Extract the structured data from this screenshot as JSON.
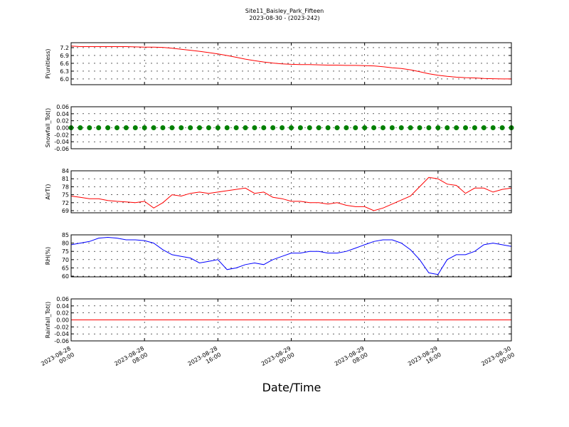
{
  "chart_data": [
    {
      "type": "line",
      "title": "Site11_Baisley_Park_Fifteen",
      "subtitle": "2023-08-30 - (2023-242)",
      "ylabel": "P(unitless)",
      "color": "#ff0000",
      "grid": true,
      "x": [
        "2023-08-28 00:00",
        "2023-08-28 01:00",
        "2023-08-28 02:00",
        "2023-08-28 03:00",
        "2023-08-28 04:00",
        "2023-08-28 05:00",
        "2023-08-28 06:00",
        "2023-08-28 07:00",
        "2023-08-28 08:00",
        "2023-08-28 09:00",
        "2023-08-28 10:00",
        "2023-08-28 11:00",
        "2023-08-28 12:00",
        "2023-08-28 13:00",
        "2023-08-28 14:00",
        "2023-08-28 15:00",
        "2023-08-28 16:00",
        "2023-08-28 17:00",
        "2023-08-28 18:00",
        "2023-08-28 19:00",
        "2023-08-28 20:00",
        "2023-08-28 21:00",
        "2023-08-28 22:00",
        "2023-08-28 23:00",
        "2023-08-29 00:00",
        "2023-08-29 01:00",
        "2023-08-29 02:00",
        "2023-08-29 03:00",
        "2023-08-29 04:00",
        "2023-08-29 05:00",
        "2023-08-29 06:00",
        "2023-08-29 07:00",
        "2023-08-29 08:00",
        "2023-08-29 09:00",
        "2023-08-29 10:00",
        "2023-08-29 11:00",
        "2023-08-29 12:00",
        "2023-08-29 13:00",
        "2023-08-29 14:00",
        "2023-08-29 15:00",
        "2023-08-29 16:00",
        "2023-08-29 17:00",
        "2023-08-29 18:00",
        "2023-08-29 19:00",
        "2023-08-29 20:00",
        "2023-08-29 21:00",
        "2023-08-29 22:00",
        "2023-08-29 23:00",
        "2023-08-30 00:00"
      ],
      "values": [
        7.26,
        7.24,
        7.24,
        7.24,
        7.24,
        7.24,
        7.24,
        7.23,
        7.22,
        7.22,
        7.21,
        7.18,
        7.14,
        7.1,
        7.06,
        7.01,
        6.96,
        6.9,
        6.83,
        6.76,
        6.7,
        6.65,
        6.61,
        6.58,
        6.56,
        6.55,
        6.55,
        6.54,
        6.53,
        6.53,
        6.52,
        6.52,
        6.51,
        6.5,
        6.47,
        6.43,
        6.4,
        6.35,
        6.28,
        6.2,
        6.14,
        6.1,
        6.07,
        6.05,
        6.04,
        6.02,
        6.01,
        6.0,
        6.0
      ],
      "ylim": [
        5.78,
        7.39
      ],
      "yticks": [
        {
          "value": 6,
          "label": "6.0"
        },
        6.3,
        6.6,
        6.9,
        7.2
      ]
    },
    {
      "type": "scatter",
      "ylabel": "Snowfall_Tot()",
      "color": "#008000",
      "grid": true,
      "x": [
        "2023-08-28 00:00",
        "2023-08-28 01:00",
        "2023-08-28 02:00",
        "2023-08-28 03:00",
        "2023-08-28 04:00",
        "2023-08-28 05:00",
        "2023-08-28 06:00",
        "2023-08-28 07:00",
        "2023-08-28 08:00",
        "2023-08-28 09:00",
        "2023-08-28 10:00",
        "2023-08-28 11:00",
        "2023-08-28 12:00",
        "2023-08-28 13:00",
        "2023-08-28 14:00",
        "2023-08-28 15:00",
        "2023-08-28 16:00",
        "2023-08-28 17:00",
        "2023-08-28 18:00",
        "2023-08-28 19:00",
        "2023-08-28 20:00",
        "2023-08-28 21:00",
        "2023-08-28 22:00",
        "2023-08-28 23:00",
        "2023-08-29 00:00",
        "2023-08-29 01:00",
        "2023-08-29 02:00",
        "2023-08-29 03:00",
        "2023-08-29 04:00",
        "2023-08-29 05:00",
        "2023-08-29 06:00",
        "2023-08-29 07:00",
        "2023-08-29 08:00",
        "2023-08-29 09:00",
        "2023-08-29 10:00",
        "2023-08-29 11:00",
        "2023-08-29 12:00",
        "2023-08-29 13:00",
        "2023-08-29 14:00",
        "2023-08-29 15:00",
        "2023-08-29 16:00",
        "2023-08-29 17:00",
        "2023-08-29 18:00",
        "2023-08-29 19:00",
        "2023-08-29 20:00",
        "2023-08-29 21:00",
        "2023-08-29 22:00",
        "2023-08-29 23:00",
        "2023-08-30 00:00"
      ],
      "values": [
        0,
        0,
        0,
        0,
        0,
        0,
        0,
        0,
        0,
        0,
        0,
        0,
        0,
        0,
        0,
        0,
        0,
        0,
        0,
        0,
        0,
        0,
        0,
        0,
        0,
        0,
        0,
        0,
        0,
        0,
        0,
        0,
        0,
        0,
        0,
        0,
        0,
        0,
        0,
        0,
        0,
        0,
        0,
        0,
        0,
        0,
        0,
        0,
        0
      ],
      "ylim": [
        -0.06,
        0.06
      ],
      "yticks": [
        -0.06,
        -0.04,
        -0.02,
        {
          "value": 0,
          "label": "0.00"
        },
        0.02,
        0.04,
        0.06
      ]
    },
    {
      "type": "line",
      "ylabel": "AirT()",
      "color": "#ff0000",
      "grid": true,
      "x": [
        "2023-08-28 00:00",
        "2023-08-28 01:00",
        "2023-08-28 02:00",
        "2023-08-28 03:00",
        "2023-08-28 04:00",
        "2023-08-28 05:00",
        "2023-08-28 06:00",
        "2023-08-28 07:00",
        "2023-08-28 08:00",
        "2023-08-28 09:00",
        "2023-08-28 10:00",
        "2023-08-28 11:00",
        "2023-08-28 12:00",
        "2023-08-28 13:00",
        "2023-08-28 14:00",
        "2023-08-28 15:00",
        "2023-08-28 16:00",
        "2023-08-28 17:00",
        "2023-08-28 18:00",
        "2023-08-28 19:00",
        "2023-08-28 20:00",
        "2023-08-28 21:00",
        "2023-08-28 22:00",
        "2023-08-28 23:00",
        "2023-08-29 00:00",
        "2023-08-29 01:00",
        "2023-08-29 02:00",
        "2023-08-29 03:00",
        "2023-08-29 04:00",
        "2023-08-29 05:00",
        "2023-08-29 06:00",
        "2023-08-29 07:00",
        "2023-08-29 08:00",
        "2023-08-29 09:00",
        "2023-08-29 10:00",
        "2023-08-29 11:00",
        "2023-08-29 12:00",
        "2023-08-29 13:00",
        "2023-08-29 14:00",
        "2023-08-29 15:00",
        "2023-08-29 16:00",
        "2023-08-29 17:00",
        "2023-08-29 18:00",
        "2023-08-29 19:00",
        "2023-08-29 20:00",
        "2023-08-29 21:00",
        "2023-08-29 22:00",
        "2023-08-29 23:00",
        "2023-08-30 00:00"
      ],
      "values": [
        74.5,
        74,
        73.5,
        73.5,
        72.8,
        72.5,
        72.3,
        72,
        72.5,
        70,
        72,
        75,
        74.5,
        75.5,
        76,
        75.5,
        76,
        76.5,
        77,
        77.5,
        75.5,
        76,
        74,
        73.5,
        72.5,
        72.5,
        72,
        72,
        71.5,
        72,
        71,
        70.5,
        70.5,
        69,
        70,
        71.5,
        73,
        74.5,
        78,
        81.5,
        81,
        79,
        78.5,
        75.5,
        77.5,
        77.5,
        76,
        77,
        77.5
      ],
      "ylim": [
        68.2,
        84
      ],
      "yticks": [
        69,
        72,
        75,
        78,
        81,
        84
      ]
    },
    {
      "type": "line",
      "ylabel": "RH(%)",
      "color": "#0000ff",
      "grid": true,
      "x": [
        "2023-08-28 00:00",
        "2023-08-28 01:00",
        "2023-08-28 02:00",
        "2023-08-28 03:00",
        "2023-08-28 04:00",
        "2023-08-28 05:00",
        "2023-08-28 06:00",
        "2023-08-28 07:00",
        "2023-08-28 08:00",
        "2023-08-28 09:00",
        "2023-08-28 10:00",
        "2023-08-28 11:00",
        "2023-08-28 12:00",
        "2023-08-28 13:00",
        "2023-08-28 14:00",
        "2023-08-28 15:00",
        "2023-08-28 16:00",
        "2023-08-28 17:00",
        "2023-08-28 18:00",
        "2023-08-28 19:00",
        "2023-08-28 20:00",
        "2023-08-28 21:00",
        "2023-08-28 22:00",
        "2023-08-28 23:00",
        "2023-08-29 00:00",
        "2023-08-29 01:00",
        "2023-08-29 02:00",
        "2023-08-29 03:00",
        "2023-08-29 04:00",
        "2023-08-29 05:00",
        "2023-08-29 06:00",
        "2023-08-29 07:00",
        "2023-08-29 08:00",
        "2023-08-29 09:00",
        "2023-08-29 10:00",
        "2023-08-29 11:00",
        "2023-08-29 12:00",
        "2023-08-29 13:00",
        "2023-08-29 14:00",
        "2023-08-29 15:00",
        "2023-08-29 16:00",
        "2023-08-29 17:00",
        "2023-08-29 18:00",
        "2023-08-29 19:00",
        "2023-08-29 20:00",
        "2023-08-29 21:00",
        "2023-08-29 22:00",
        "2023-08-29 23:00",
        "2023-08-30 00:00"
      ],
      "values": [
        79,
        80,
        81,
        83,
        83.5,
        83,
        82,
        82,
        81.5,
        80,
        76,
        73,
        72,
        71,
        68,
        69,
        70,
        64,
        65,
        67,
        68,
        67,
        70,
        72,
        74,
        74,
        75,
        75,
        74,
        74,
        75,
        77,
        79,
        81,
        82,
        82,
        80,
        76,
        70,
        62,
        61,
        70,
        73,
        73,
        75,
        79,
        80,
        79,
        78
      ],
      "ylim": [
        59.6,
        85
      ],
      "yticks": [
        60,
        65,
        70,
        75,
        80,
        85
      ]
    },
    {
      "type": "line",
      "ylabel": "Rainfall_Tot()",
      "xlabel": "Date/Time",
      "color": "#ff0000",
      "grid": true,
      "x": [
        "2023-08-28 00:00",
        "2023-08-28 01:00",
        "2023-08-28 02:00",
        "2023-08-28 03:00",
        "2023-08-28 04:00",
        "2023-08-28 05:00",
        "2023-08-28 06:00",
        "2023-08-28 07:00",
        "2023-08-28 08:00",
        "2023-08-28 09:00",
        "2023-08-28 10:00",
        "2023-08-28 11:00",
        "2023-08-28 12:00",
        "2023-08-28 13:00",
        "2023-08-28 14:00",
        "2023-08-28 15:00",
        "2023-08-28 16:00",
        "2023-08-28 17:00",
        "2023-08-28 18:00",
        "2023-08-28 19:00",
        "2023-08-28 20:00",
        "2023-08-28 21:00",
        "2023-08-28 22:00",
        "2023-08-28 23:00",
        "2023-08-29 00:00",
        "2023-08-29 01:00",
        "2023-08-29 02:00",
        "2023-08-29 03:00",
        "2023-08-29 04:00",
        "2023-08-29 05:00",
        "2023-08-29 06:00",
        "2023-08-29 07:00",
        "2023-08-29 08:00",
        "2023-08-29 09:00",
        "2023-08-29 10:00",
        "2023-08-29 11:00",
        "2023-08-29 12:00",
        "2023-08-29 13:00",
        "2023-08-29 14:00",
        "2023-08-29 15:00",
        "2023-08-29 16:00",
        "2023-08-29 17:00",
        "2023-08-29 18:00",
        "2023-08-29 19:00",
        "2023-08-29 20:00",
        "2023-08-29 21:00",
        "2023-08-29 22:00",
        "2023-08-29 23:00",
        "2023-08-30 00:00"
      ],
      "values": [
        0,
        0,
        0,
        0,
        0,
        0,
        0,
        0,
        0,
        0,
        0,
        0,
        0,
        0,
        0,
        0,
        0,
        0,
        0,
        0,
        0,
        0,
        0,
        0,
        0,
        0,
        0,
        0,
        0,
        0,
        0,
        0,
        0,
        0,
        0,
        0,
        0,
        0,
        0,
        0,
        0,
        0,
        0,
        0,
        0,
        0,
        0,
        0,
        0
      ],
      "ylim": [
        -0.06,
        0.06
      ],
      "yticks": [
        -0.06,
        -0.04,
        -0.02,
        {
          "value": 0,
          "label": "0.00"
        },
        0.02,
        0.04,
        0.06
      ],
      "xlim": [
        "2023-08-28 00:00",
        "2023-08-30 00:00"
      ],
      "xticks": [
        "2023-08-28 00:00",
        "2023-08-28 08:00",
        "2023-08-28 16:00",
        "2023-08-29 00:00",
        "2023-08-29 08:00",
        "2023-08-29 16:00",
        "2023-08-30 00:00"
      ]
    }
  ]
}
